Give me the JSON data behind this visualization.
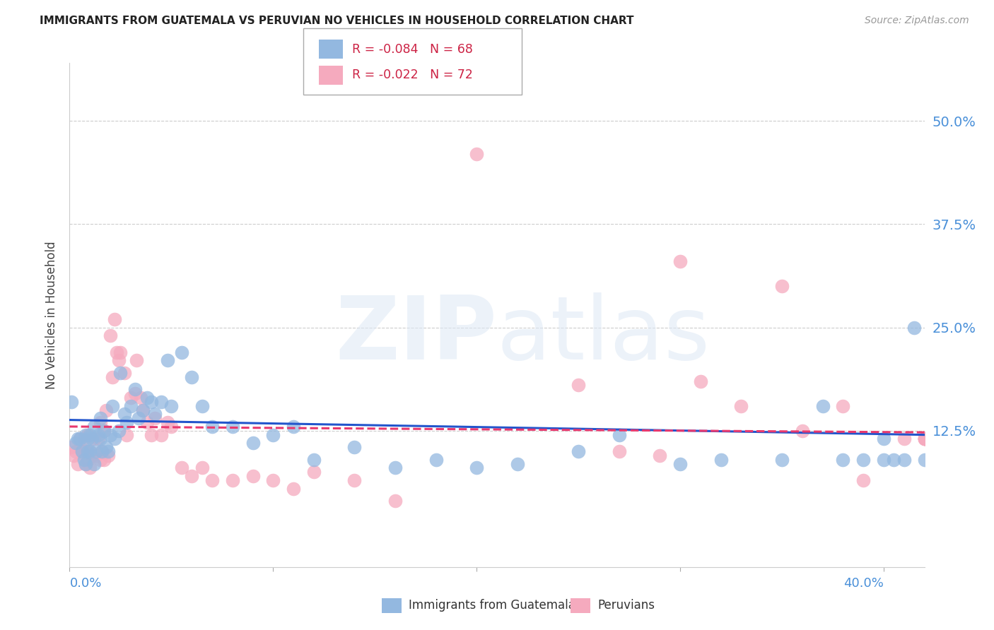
{
  "title": "IMMIGRANTS FROM GUATEMALA VS PERUVIAN NO VEHICLES IN HOUSEHOLD CORRELATION CHART",
  "source": "Source: ZipAtlas.com",
  "ylabel": "No Vehicles in Household",
  "ytick_labels": [
    "12.5%",
    "25.0%",
    "37.5%",
    "50.0%"
  ],
  "ytick_values": [
    0.125,
    0.25,
    0.375,
    0.5
  ],
  "xtick_labels": [
    "0.0%",
    "40.0%"
  ],
  "xlim": [
    0.0,
    0.42
  ],
  "ylim": [
    -0.04,
    0.57
  ],
  "legend_blue_r": "R = -0.084",
  "legend_blue_n": "N = 68",
  "legend_pink_r": "R = -0.022",
  "legend_pink_n": "N = 72",
  "legend_label_blue": "Immigrants from Guatemala",
  "legend_label_pink": "Peruvians",
  "blue_color": "#93b8e0",
  "pink_color": "#f5aabe",
  "trendline_blue_color": "#2255cc",
  "trendline_pink_color": "#e8396e",
  "watermark_zip": "ZIP",
  "watermark_atlas": "atlas",
  "blue_x": [
    0.001,
    0.003,
    0.004,
    0.005,
    0.006,
    0.007,
    0.008,
    0.008,
    0.009,
    0.009,
    0.01,
    0.01,
    0.011,
    0.012,
    0.012,
    0.013,
    0.014,
    0.015,
    0.015,
    0.016,
    0.017,
    0.018,
    0.019,
    0.02,
    0.021,
    0.022,
    0.024,
    0.025,
    0.027,
    0.028,
    0.03,
    0.032,
    0.034,
    0.036,
    0.038,
    0.04,
    0.042,
    0.045,
    0.048,
    0.05,
    0.055,
    0.06,
    0.065,
    0.07,
    0.08,
    0.09,
    0.1,
    0.11,
    0.12,
    0.14,
    0.16,
    0.18,
    0.2,
    0.22,
    0.25,
    0.27,
    0.3,
    0.32,
    0.35,
    0.37,
    0.39,
    0.4,
    0.405,
    0.41,
    0.415,
    0.42,
    0.38,
    0.4
  ],
  "blue_y": [
    0.16,
    0.11,
    0.115,
    0.115,
    0.1,
    0.09,
    0.085,
    0.12,
    0.1,
    0.115,
    0.1,
    0.12,
    0.115,
    0.085,
    0.13,
    0.1,
    0.12,
    0.115,
    0.14,
    0.1,
    0.125,
    0.105,
    0.1,
    0.12,
    0.155,
    0.115,
    0.125,
    0.195,
    0.145,
    0.135,
    0.155,
    0.175,
    0.14,
    0.15,
    0.165,
    0.16,
    0.145,
    0.16,
    0.21,
    0.155,
    0.22,
    0.19,
    0.155,
    0.13,
    0.13,
    0.11,
    0.12,
    0.13,
    0.09,
    0.105,
    0.08,
    0.09,
    0.08,
    0.085,
    0.1,
    0.12,
    0.085,
    0.09,
    0.09,
    0.155,
    0.09,
    0.09,
    0.09,
    0.09,
    0.25,
    0.09,
    0.09,
    0.115
  ],
  "pink_x": [
    0.001,
    0.002,
    0.003,
    0.004,
    0.005,
    0.006,
    0.007,
    0.008,
    0.008,
    0.009,
    0.009,
    0.01,
    0.01,
    0.011,
    0.012,
    0.013,
    0.014,
    0.015,
    0.015,
    0.016,
    0.017,
    0.017,
    0.018,
    0.019,
    0.02,
    0.021,
    0.022,
    0.023,
    0.024,
    0.025,
    0.027,
    0.028,
    0.03,
    0.032,
    0.033,
    0.035,
    0.036,
    0.038,
    0.04,
    0.042,
    0.045,
    0.048,
    0.05,
    0.055,
    0.06,
    0.065,
    0.07,
    0.08,
    0.09,
    0.1,
    0.11,
    0.12,
    0.14,
    0.16,
    0.2,
    0.25,
    0.3,
    0.35,
    0.38,
    0.29,
    0.27,
    0.31,
    0.33,
    0.36,
    0.39,
    0.41,
    0.42,
    0.42,
    0.42,
    0.42,
    0.42,
    0.42
  ],
  "pink_y": [
    0.105,
    0.095,
    0.1,
    0.085,
    0.115,
    0.1,
    0.115,
    0.1,
    0.085,
    0.12,
    0.09,
    0.08,
    0.1,
    0.095,
    0.115,
    0.095,
    0.115,
    0.09,
    0.135,
    0.1,
    0.125,
    0.09,
    0.15,
    0.095,
    0.24,
    0.19,
    0.26,
    0.22,
    0.21,
    0.22,
    0.195,
    0.12,
    0.165,
    0.17,
    0.21,
    0.165,
    0.15,
    0.135,
    0.12,
    0.14,
    0.12,
    0.135,
    0.13,
    0.08,
    0.07,
    0.08,
    0.065,
    0.065,
    0.07,
    0.065,
    0.055,
    0.075,
    0.065,
    0.04,
    0.46,
    0.18,
    0.33,
    0.3,
    0.155,
    0.095,
    0.1,
    0.185,
    0.155,
    0.125,
    0.065,
    0.115,
    0.115,
    0.115,
    0.115,
    0.115,
    0.115,
    0.115
  ]
}
